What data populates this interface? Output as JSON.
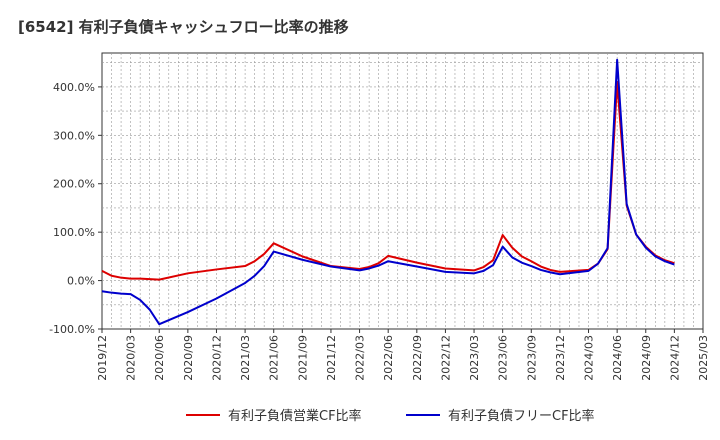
{
  "chart_data": {
    "type": "line",
    "title": "[6542]  有利子負債キャッシュフロー比率の推移",
    "xlabel": "",
    "ylabel": "",
    "ylim": [
      -100,
      470
    ],
    "yticks": [
      -100,
      0,
      100,
      200,
      300,
      400
    ],
    "ytick_labels": [
      "-100.0%",
      "0.0%",
      "100.0%",
      "200.0%",
      "300.0%",
      "400.0%"
    ],
    "xticks": [
      "2019/12",
      "2020/03",
      "2020/06",
      "2020/09",
      "2020/12",
      "2021/03",
      "2021/06",
      "2021/09",
      "2021/12",
      "2022/03",
      "2022/06",
      "2022/09",
      "2022/12",
      "2023/03",
      "2023/06",
      "2023/09",
      "2023/12",
      "2024/03",
      "2024/06",
      "2024/09",
      "2024/12",
      "2025/03"
    ],
    "grid": true,
    "legend_position": "bottom",
    "x": [
      "2019/12",
      "2020/01",
      "2020/02",
      "2020/03",
      "2020/04",
      "2020/05",
      "2020/06",
      "2020/09",
      "2020/12",
      "2021/03",
      "2021/04",
      "2021/05",
      "2021/06",
      "2021/09",
      "2021/12",
      "2022/03",
      "2022/04",
      "2022/05",
      "2022/06",
      "2022/09",
      "2022/12",
      "2023/03",
      "2023/04",
      "2023/05",
      "2023/06",
      "2023/07",
      "2023/08",
      "2023/09",
      "2023/10",
      "2023/11",
      "2023/12",
      "2024/03",
      "2024/04",
      "2024/05",
      "2024/06",
      "2024/07",
      "2024/08",
      "2024/09",
      "2024/10",
      "2024/11",
      "2024/12"
    ],
    "series": [
      {
        "name": "有利子負債営業CF比率",
        "color": "#dd0000",
        "values": [
          20,
          10,
          6,
          4,
          4,
          3,
          2,
          15,
          23,
          30,
          40,
          55,
          77,
          50,
          30,
          24,
          28,
          36,
          51,
          37,
          25,
          21,
          28,
          42,
          94,
          68,
          50,
          40,
          29,
          22,
          18,
          22,
          35,
          65,
          410,
          155,
          95,
          70,
          52,
          42,
          36
        ]
      },
      {
        "name": "有利子負債フリーCF比率",
        "color": "#0000cc",
        "values": [
          -22,
          -25,
          -27,
          -28,
          -40,
          -60,
          -90,
          -65,
          -37,
          -5,
          10,
          30,
          60,
          43,
          29,
          21,
          25,
          31,
          40,
          29,
          18,
          15,
          20,
          32,
          70,
          48,
          37,
          30,
          22,
          17,
          13,
          20,
          35,
          67,
          456,
          158,
          95,
          68,
          50,
          40,
          33
        ]
      }
    ]
  }
}
